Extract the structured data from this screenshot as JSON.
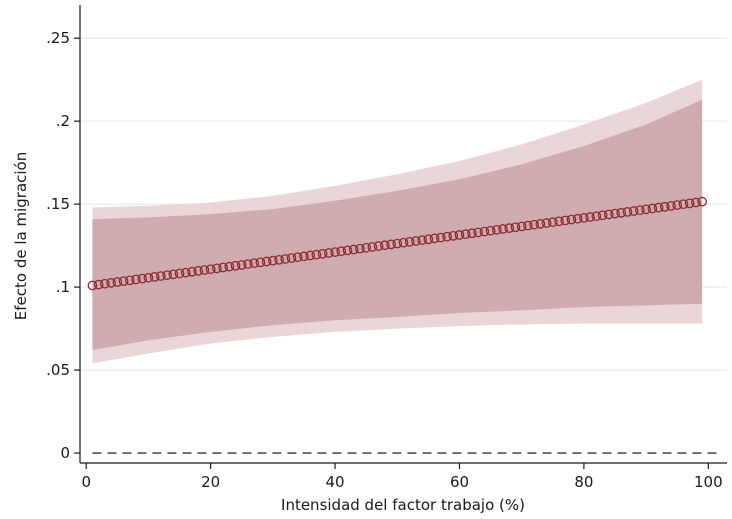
{
  "chart_data": {
    "type": "line",
    "title": "",
    "xlabel": "Intensidad del factor trabajo (%)",
    "ylabel": "Efecto de la migración",
    "xlim": [
      -1,
      103
    ],
    "ylim": [
      -0.006,
      0.27
    ],
    "xticks": [
      0,
      20,
      40,
      60,
      80,
      100
    ],
    "xtick_labels": [
      "0",
      "20",
      "40",
      "60",
      "80",
      "100"
    ],
    "yticks": [
      0,
      0.05,
      0.1,
      0.15,
      0.2,
      0.25
    ],
    "ytick_labels": [
      "0",
      ".05",
      ".1",
      ".15",
      ".2",
      ".25"
    ],
    "grid": true,
    "reference_line": {
      "y": 0,
      "style": "dashed"
    },
    "series": [
      {
        "marker": "hollow-circle",
        "x_start": 1,
        "x_end": 99,
        "x_step": 1,
        "y_start": 0.101,
        "y_end": 0.1515
      }
    ],
    "bands": [
      {
        "level": "outer",
        "x": [
          1,
          10,
          20,
          30,
          40,
          50,
          60,
          70,
          80,
          90,
          99
        ],
        "lower": [
          0.054,
          0.06,
          0.066,
          0.07,
          0.073,
          0.075,
          0.0765,
          0.0775,
          0.078,
          0.078,
          0.078
        ],
        "upper": [
          0.148,
          0.149,
          0.151,
          0.155,
          0.161,
          0.168,
          0.176,
          0.186,
          0.198,
          0.211,
          0.225
        ]
      },
      {
        "level": "inner",
        "x": [
          1,
          10,
          20,
          30,
          40,
          50,
          60,
          70,
          80,
          90,
          99
        ],
        "lower": [
          0.062,
          0.068,
          0.073,
          0.077,
          0.08,
          0.082,
          0.0845,
          0.086,
          0.088,
          0.089,
          0.09
        ],
        "upper": [
          0.141,
          0.142,
          0.144,
          0.147,
          0.152,
          0.158,
          0.165,
          0.174,
          0.185,
          0.198,
          0.213
        ]
      }
    ]
  },
  "colors": {
    "band_outer": "#ead6d7",
    "band_inner": "#d0abaf",
    "line": "#8c2a33",
    "grid": "#e6e6e6",
    "axis": "#1a1a1a",
    "reference": "#333333"
  }
}
